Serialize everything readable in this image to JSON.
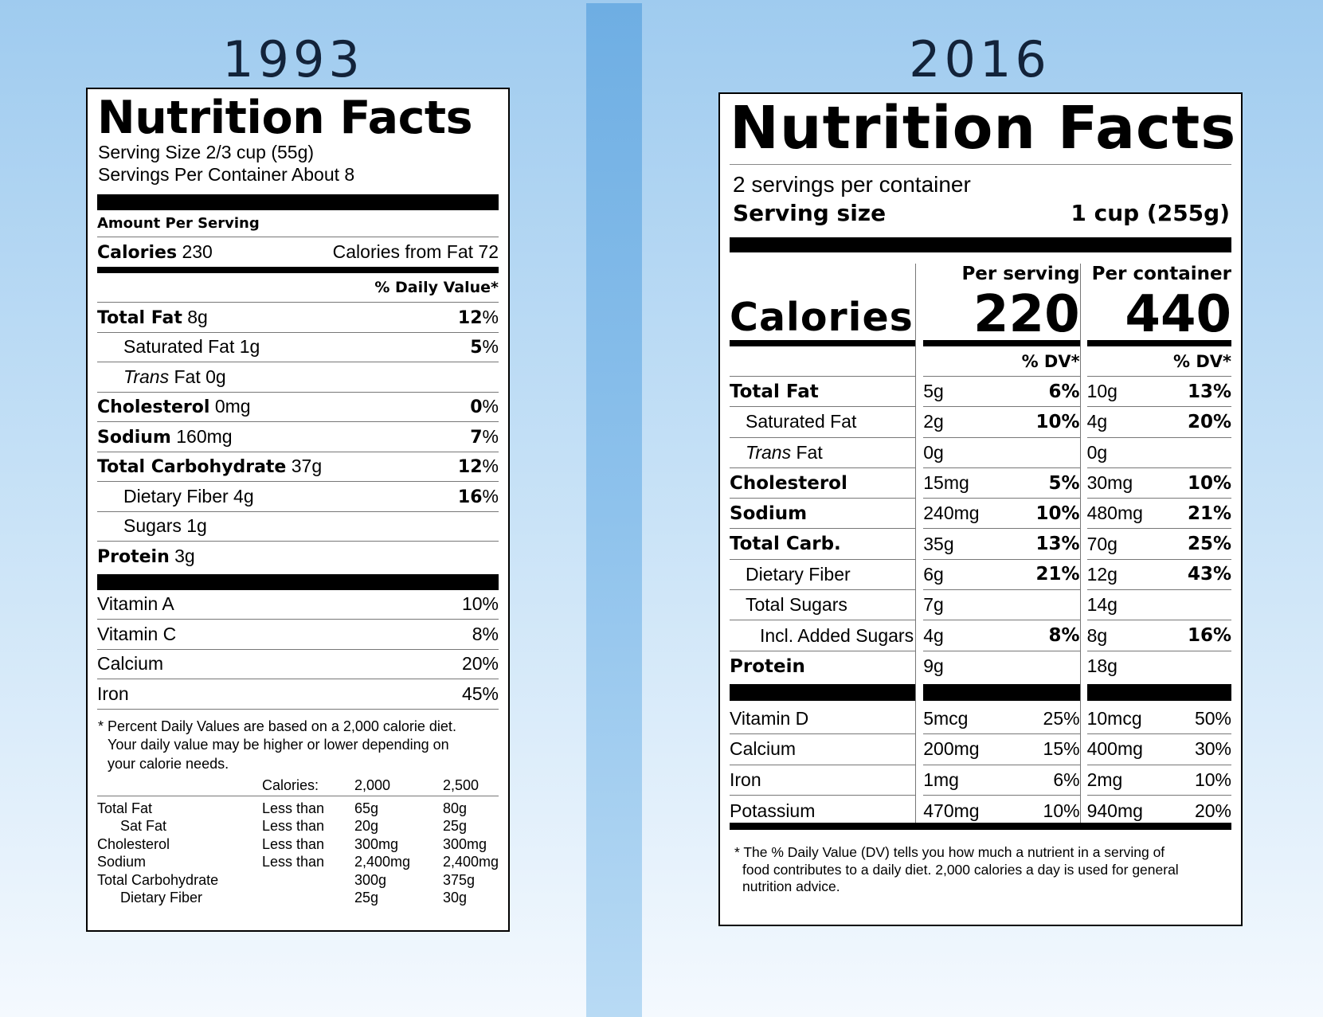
{
  "years": {
    "left": "1993",
    "right": "2016"
  },
  "old_label": {
    "title": "Nutrition Facts",
    "serving_size": "Serving Size 2/3 cup (55g)",
    "servings_per_container": "Servings Per Container About 8",
    "amount_per_serving": "Amount Per Serving",
    "calories_label": "Calories",
    "calories_value": "230",
    "calories_from_fat": "Calories from Fat 72",
    "daily_value_header": "% Daily Value*",
    "nutrients": [
      {
        "name": "Total Fat",
        "amount": "8g",
        "pct_num": "12",
        "pct_sign": "%"
      },
      {
        "name": "Saturated Fat",
        "amount": "1g",
        "pct_num": "5",
        "pct_sign": "%"
      },
      {
        "name": "Trans",
        "name_rest": "Fat",
        "amount": "0g"
      },
      {
        "name": "Cholesterol",
        "amount": "0mg",
        "pct_num": "0",
        "pct_sign": "%"
      },
      {
        "name": "Sodium",
        "amount": "160mg",
        "pct_num": "7",
        "pct_sign": "%"
      },
      {
        "name": "Total Carbohydrate",
        "amount": "37g",
        "pct_num": "12",
        "pct_sign": "%"
      },
      {
        "name": "Dietary Fiber",
        "amount": "4g",
        "pct_num": "16",
        "pct_sign": "%"
      },
      {
        "name": "Sugars",
        "amount": "1g"
      },
      {
        "name": "Protein",
        "amount": "3g"
      }
    ],
    "vitamins": [
      {
        "name": "Vitamin A",
        "pct": "10%"
      },
      {
        "name": "Vitamin C",
        "pct": "8%"
      },
      {
        "name": "Calcium",
        "pct": "20%"
      },
      {
        "name": "Iron",
        "pct": "45%"
      }
    ],
    "footnote": [
      "* Percent Daily Values are based on a 2,000 calorie diet.",
      "Your daily value may be higher or lower depending on",
      "your calorie needs."
    ],
    "ref_table": {
      "header": [
        "",
        "Calories:",
        "2,000",
        "2,500"
      ],
      "rows": [
        [
          "Total Fat",
          "Less than",
          "65g",
          "80g"
        ],
        [
          "Sat Fat",
          "Less than",
          "20g",
          "25g"
        ],
        [
          "Cholesterol",
          "Less than",
          "300mg",
          "300mg"
        ],
        [
          "Sodium",
          "Less than",
          "2,400mg",
          "2,400mg"
        ],
        [
          "Total Carbohydrate",
          "",
          "300g",
          "375g"
        ],
        [
          "Dietary Fiber",
          "",
          "25g",
          "30g"
        ]
      ]
    }
  },
  "new_label": {
    "title": "Nutrition Facts",
    "servings_per_container": "2 servings per container",
    "serving_size_label": "Serving size",
    "serving_size_value": "1 cup (255g)",
    "calories_label": "Calories",
    "per_serving_label": "Per serving",
    "per_container_label": "Per container",
    "calories_serving": "220",
    "calories_container": "440",
    "dv_header": "% DV*",
    "nutrients": [
      {
        "name": "Total Fat",
        "s_amt": "5g",
        "s_pct": "6%",
        "c_amt": "10g",
        "c_pct": "13%"
      },
      {
        "name": "Saturated Fat",
        "s_amt": "2g",
        "s_pct": "10%",
        "c_amt": "4g",
        "c_pct": "20%"
      },
      {
        "name": "Trans",
        "name_rest": "Fat",
        "s_amt": "0g",
        "s_pct": "",
        "c_amt": "0g",
        "c_pct": ""
      },
      {
        "name": "Cholesterol",
        "s_amt": "15mg",
        "s_pct": "5%",
        "c_amt": "30mg",
        "c_pct": "10%"
      },
      {
        "name": "Sodium",
        "s_amt": "240mg",
        "s_pct": "10%",
        "c_amt": "480mg",
        "c_pct": "21%"
      },
      {
        "name": "Total Carb.",
        "s_amt": "35g",
        "s_pct": "13%",
        "c_amt": "70g",
        "c_pct": "25%"
      },
      {
        "name": "Dietary Fiber",
        "s_amt": "6g",
        "s_pct": "21%",
        "c_amt": "12g",
        "c_pct": "43%"
      },
      {
        "name": "Total Sugars",
        "s_amt": "7g",
        "s_pct": "",
        "c_amt": "14g",
        "c_pct": ""
      },
      {
        "name": "Incl. Added Sugars",
        "s_amt": "4g",
        "s_pct": "8%",
        "c_amt": "8g",
        "c_pct": "16%"
      },
      {
        "name": "Protein",
        "s_amt": "9g",
        "s_pct": "",
        "c_amt": "18g",
        "c_pct": ""
      }
    ],
    "vitamins": [
      {
        "name": "Vitamin D",
        "s_amt": "5mcg",
        "s_pct": "25%",
        "c_amt": "10mcg",
        "c_pct": "50%"
      },
      {
        "name": "Calcium",
        "s_amt": "200mg",
        "s_pct": "15%",
        "c_amt": "400mg",
        "c_pct": "30%"
      },
      {
        "name": "Iron",
        "s_amt": "1mg",
        "s_pct": "6%",
        "c_amt": "2mg",
        "c_pct": "10%"
      },
      {
        "name": "Potassium",
        "s_amt": "470mg",
        "s_pct": "10%",
        "c_amt": "940mg",
        "c_pct": "20%"
      }
    ],
    "footnote": [
      "* The % Daily Value (DV) tells you how much a nutrient in a serving of",
      "food contributes to a daily diet. 2,000 calories a day is used for general",
      "nutrition advice."
    ]
  }
}
